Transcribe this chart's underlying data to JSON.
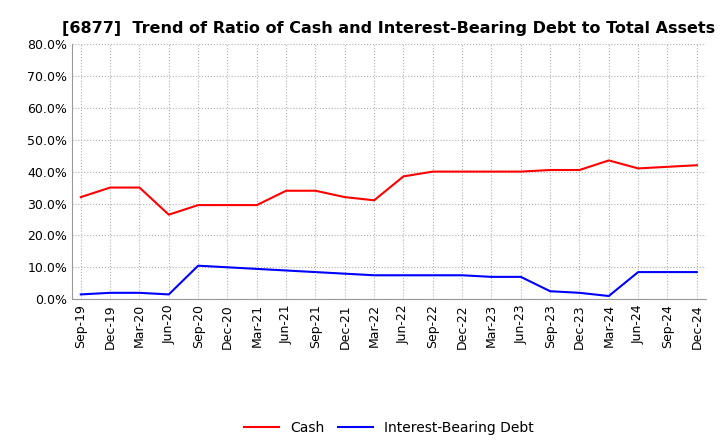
{
  "title": "[6877]  Trend of Ratio of Cash and Interest-Bearing Debt to Total Assets",
  "x_labels": [
    "Sep-19",
    "Dec-19",
    "Mar-20",
    "Jun-20",
    "Sep-20",
    "Dec-20",
    "Mar-21",
    "Jun-21",
    "Sep-21",
    "Dec-21",
    "Mar-22",
    "Jun-22",
    "Sep-22",
    "Dec-22",
    "Mar-23",
    "Jun-23",
    "Sep-23",
    "Dec-23",
    "Mar-24",
    "Jun-24",
    "Sep-24",
    "Dec-24"
  ],
  "cash": [
    32.0,
    35.0,
    35.0,
    26.5,
    29.5,
    29.5,
    29.5,
    34.0,
    34.0,
    32.0,
    31.0,
    38.5,
    40.0,
    40.0,
    40.0,
    40.0,
    40.5,
    40.5,
    43.5,
    41.0,
    41.5,
    42.0
  ],
  "debt": [
    1.5,
    2.0,
    2.0,
    1.5,
    10.5,
    10.0,
    9.5,
    9.0,
    8.5,
    8.0,
    7.5,
    7.5,
    7.5,
    7.5,
    7.0,
    7.0,
    2.5,
    2.0,
    1.0,
    8.5,
    8.5,
    8.5
  ],
  "cash_color": "#ff0000",
  "debt_color": "#0000ff",
  "ylim": [
    0,
    80
  ],
  "yticks": [
    0,
    10,
    20,
    30,
    40,
    50,
    60,
    70,
    80
  ],
  "background_color": "#ffffff",
  "plot_bg_color": "#ffffff",
  "grid_color": "#b0b0b0",
  "title_fontsize": 11.5,
  "tick_fontsize": 9,
  "legend_fontsize": 10
}
